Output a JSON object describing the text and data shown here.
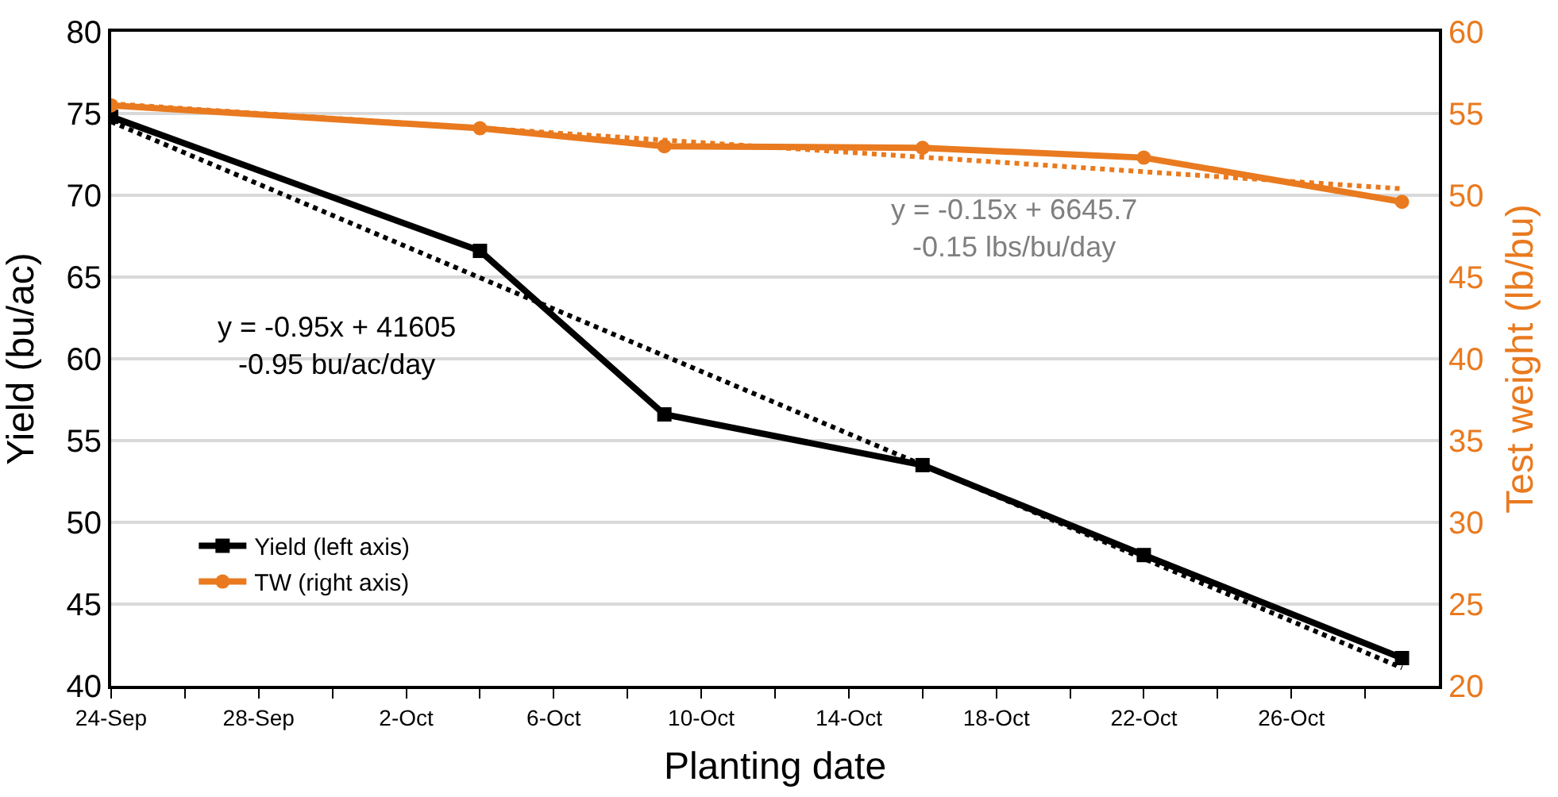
{
  "chart_data": {
    "type": "line",
    "xlabel": "Planting date",
    "ylabel": "Yield (bu/ac)",
    "y2label": "Test weight (lb/bu)",
    "xlim": [
      "--09-24",
      "--10-30"
    ],
    "xticks": [
      {
        "value": "--09-24",
        "label": "24-Sep"
      },
      {
        "value": "--09-26",
        "label": null
      },
      {
        "value": "--09-28",
        "label": "28-Sep"
      },
      {
        "value": "--09-30",
        "label": null
      },
      {
        "value": "--10-02",
        "label": "2-Oct"
      },
      {
        "value": "--10-04",
        "label": null
      },
      {
        "value": "--10-06",
        "label": "6-Oct"
      },
      {
        "value": "--10-08",
        "label": null
      },
      {
        "value": "--10-10",
        "label": "10-Oct"
      },
      {
        "value": "--10-12",
        "label": null
      },
      {
        "value": "--10-14",
        "label": "14-Oct"
      },
      {
        "value": "--10-16",
        "label": null
      },
      {
        "value": "--10-18",
        "label": "18-Oct"
      },
      {
        "value": "--10-20",
        "label": null
      },
      {
        "value": "--10-22",
        "label": "22-Oct"
      },
      {
        "value": "--10-24",
        "label": null
      },
      {
        "value": "--10-26",
        "label": "26-Oct"
      },
      {
        "value": "--10-28",
        "label": null
      }
    ],
    "ylim": [
      40,
      80
    ],
    "yticks": [
      40,
      45,
      50,
      55,
      60,
      65,
      70,
      75,
      80
    ],
    "y2lim": [
      20,
      60
    ],
    "y2ticks": [
      20,
      25,
      30,
      35,
      40,
      45,
      50,
      55,
      60
    ],
    "grid": "y",
    "legend": "bottom left",
    "series": [
      {
        "name": "Yield (left axis)",
        "color": "#000000",
        "marker": "square",
        "line_style": "solid",
        "x": [
          "--09-24",
          "--10-04",
          "--10-09",
          "--10-16",
          "--10-22",
          "--10-29"
        ],
        "values": [
          74.8,
          66.6,
          56.6,
          53.5,
          48.0,
          41.7
        ]
      },
      {
        "name": "TW (right axis)",
        "color": "#e97a1f",
        "marker": "circle",
        "line_style": "solid",
        "axis": "y2",
        "x": [
          "--09-24",
          "--10-04",
          "--10-09",
          "--10-16",
          "--10-22",
          "--10-29"
        ],
        "values": [
          55.5,
          54.1,
          53.0,
          52.9,
          52.3,
          49.6
        ]
      },
      {
        "color": "#000000",
        "marker": "none",
        "line_style": "dotted",
        "x": [
          "--09-24",
          "--10-29"
        ],
        "values": [
          74.5,
          41.1
        ]
      },
      {
        "color": "#e97a1f",
        "marker": "none",
        "line_style": "dotted",
        "axis": "y2",
        "x": [
          "--09-24",
          "--10-29"
        ],
        "values": [
          55.6,
          50.4
        ]
      }
    ],
    "annotations": [
      "y = -0.95x + 41605\n-0.95 bu/ac/day",
      "y = -0.15x + 6645.7\n-0.15 lbs/bu/day"
    ]
  }
}
